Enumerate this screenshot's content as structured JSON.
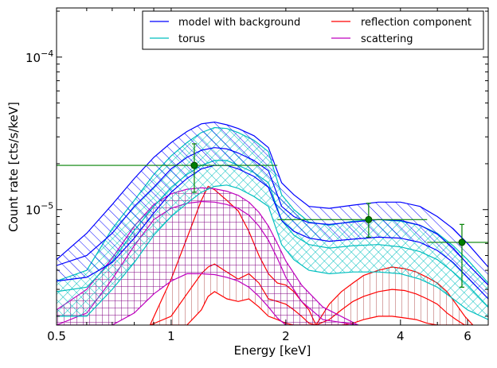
{
  "chart_data": {
    "type": "line",
    "title": "",
    "xlabel": "Energy [keV]",
    "ylabel": "Count rate [cts/s/keV]",
    "x_scale": "log",
    "y_scale": "log",
    "xlim": [
      0.5,
      6.8
    ],
    "ylim": [
      1.75e-06,
      0.00021
    ],
    "x_ticks": [
      {
        "value": 0.5,
        "label": "0.5"
      },
      {
        "value": 1,
        "label": "1"
      },
      {
        "value": 2,
        "label": "2"
      },
      {
        "value": 4,
        "label": "4"
      },
      {
        "value": 6,
        "label": "6"
      }
    ],
    "y_ticks": [
      {
        "value": 1e-05,
        "base": "10",
        "exp": "-5"
      },
      {
        "value": 0.0001,
        "base": "10",
        "exp": "-4"
      }
    ],
    "legend": {
      "placement": "top-right",
      "entries": [
        {
          "label": "model with background",
          "color": "#0000ff"
        },
        {
          "label": "reflection component",
          "color": "#ff0000"
        },
        {
          "label": "torus",
          "color": "#00bfbf"
        },
        {
          "label": "scattering",
          "color": "#bf00bf"
        }
      ]
    },
    "series": [
      {
        "name": "model with background",
        "color": "#0000ff",
        "hatch": "diagonal",
        "x": [
          0.5,
          0.6,
          0.7,
          0.8,
          0.9,
          1.0,
          1.1,
          1.2,
          1.3,
          1.4,
          1.5,
          1.65,
          1.8,
          1.95,
          2.1,
          2.3,
          2.6,
          3.0,
          3.5,
          4.0,
          4.5,
          5.0,
          5.5,
          6.0,
          6.8
        ],
        "upper": [
          4.7e-06,
          7e-06,
          1.08e-05,
          1.6e-05,
          2.2e-05,
          2.75e-05,
          3.25e-05,
          3.65e-05,
          3.75e-05,
          3.6e-05,
          3.4e-05,
          3.05e-05,
          2.55e-05,
          1.5e-05,
          1.25e-05,
          1.05e-05,
          1.02e-05,
          1.07e-05,
          1.12e-05,
          1.12e-05,
          1.05e-05,
          9e-06,
          7.5e-06,
          6e-06,
          4.2e-06
        ],
        "median": [
          4.3e-06,
          5e-06,
          7e-06,
          1.05e-05,
          1.4e-05,
          1.85e-05,
          2.2e-05,
          2.45e-05,
          2.55e-05,
          2.5e-05,
          2.35e-05,
          2.1e-05,
          1.8e-05,
          1.05e-05,
          9e-06,
          8.2e-06,
          8e-06,
          8.3e-06,
          8.6e-06,
          8.5e-06,
          7.9e-06,
          6.9e-06,
          5.6e-06,
          4.4e-06,
          3.2e-06
        ],
        "lower": [
          3.4e-06,
          3.6e-06,
          4.5e-06,
          6.5e-06,
          9.5e-06,
          1.3e-05,
          1.6e-05,
          1.85e-05,
          1.95e-05,
          1.95e-05,
          1.85e-05,
          1.65e-05,
          1.4e-05,
          8.5e-06,
          7.2e-06,
          6.5e-06,
          6.2e-06,
          6.4e-06,
          6.6e-06,
          6.5e-06,
          6.1e-06,
          5.4e-06,
          4.5e-06,
          3.6e-06,
          2.6e-06
        ]
      },
      {
        "name": "torus",
        "color": "#00bfbf",
        "hatch": "cross",
        "x": [
          0.5,
          0.6,
          0.7,
          0.8,
          0.9,
          1.0,
          1.1,
          1.2,
          1.3,
          1.4,
          1.5,
          1.65,
          1.8,
          1.95,
          2.1,
          2.3,
          2.6,
          3.0,
          3.5,
          4.0,
          4.5,
          5.0,
          5.5,
          6.0,
          6.8
        ],
        "upper": [
          3.4e-06,
          4e-06,
          7.5e-06,
          1.15e-05,
          1.7e-05,
          2.25e-05,
          2.75e-05,
          3.2e-05,
          3.45e-05,
          3.4e-05,
          3.2e-05,
          2.85e-05,
          2.4e-05,
          1.25e-05,
          1e-05,
          8.3e-06,
          7.9e-06,
          8.4e-06,
          8.6e-06,
          8.4e-06,
          7.9e-06,
          7e-06,
          5.8e-06,
          4.7e-06,
          3.3e-06
        ],
        "median": [
          2.9e-06,
          3.1e-06,
          4.6e-06,
          7.3e-06,
          1.05e-05,
          1.4e-05,
          1.7e-05,
          1.95e-05,
          2.1e-05,
          2.1e-05,
          1.95e-05,
          1.75e-05,
          1.5e-05,
          8.5e-06,
          6.8e-06,
          5.9e-06,
          5.6e-06,
          5.8e-06,
          5.9e-06,
          5.7e-06,
          5.3e-06,
          4.7e-06,
          3.9e-06,
          3.2e-06,
          2.3e-06
        ],
        "lower": [
          2e-06,
          2e-06,
          3e-06,
          4.5e-06,
          6.8e-06,
          9e-06,
          1.1e-05,
          1.3e-05,
          1.42e-05,
          1.45e-05,
          1.38e-05,
          1.22e-05,
          1.05e-05,
          5.9e-06,
          4.7e-06,
          4e-06,
          3.8e-06,
          3.9e-06,
          3.9e-06,
          3.8e-06,
          3.5e-06,
          3.1e-06,
          2.6e-06,
          2.2e-06,
          1.9e-06
        ]
      },
      {
        "name": "scattering",
        "color": "#bf00bf",
        "hatch": "grid",
        "x": [
          0.5,
          0.6,
          0.7,
          0.8,
          0.9,
          1.0,
          1.1,
          1.2,
          1.3,
          1.4,
          1.5,
          1.6,
          1.7,
          1.8,
          1.9,
          2.0,
          2.2,
          2.5,
          3.1
        ],
        "upper": [
          2.2e-06,
          3e-06,
          4.8e-06,
          7.8e-06,
          1.08e-05,
          1.27e-05,
          1.36e-05,
          1.39e-05,
          1.37e-05,
          1.32e-05,
          1.24e-05,
          1.12e-05,
          9.6e-06,
          7.8e-06,
          6e-06,
          4.6e-06,
          3.2e-06,
          2.3e-06,
          1.75e-06
        ],
        "median": [
          1.75e-06,
          2.1e-06,
          3.5e-06,
          5.8e-06,
          8.6e-06,
          1.02e-05,
          1.1e-05,
          1.13e-05,
          1.12e-05,
          1.08e-05,
          1.02e-05,
          9.2e-06,
          7.8e-06,
          6.3e-06,
          4.8e-06,
          3.6e-06,
          2.5e-06,
          1.9e-06,
          1.75e-06
        ],
        "lower": [
          1.75e-06,
          1.75e-06,
          1.75e-06,
          2.1e-06,
          2.8e-06,
          3.4e-06,
          3.8e-06,
          3.8e-06,
          3.75e-06,
          3.6e-06,
          3.4e-06,
          3.1e-06,
          2.7e-06,
          2.3e-06,
          1.95e-06,
          1.75e-06,
          1.75e-06,
          1.75e-06,
          1.75e-06
        ]
      },
      {
        "name": "reflection component",
        "color": "#ff0000",
        "hatch": "vertical",
        "segments": [
          {
            "x": [
              0.88,
              1.0,
              1.1,
              1.2,
              1.25,
              1.3,
              1.4,
              1.5,
              1.6,
              1.7,
              1.8,
              1.9,
              2.0,
              2.1,
              2.2,
              2.3,
              2.4
            ],
            "upper": [
              1.75e-06,
              3.5e-06,
              6.5e-06,
              1.15e-05,
              1.42e-05,
              1.35e-05,
              1.15e-05,
              9.8e-06,
              7.2e-06,
              5e-06,
              3.8e-06,
              3.3e-06,
              3.2e-06,
              2.9e-06,
              2.5e-06,
              2.2e-06,
              1.75e-06
            ],
            "median": [
              1.75e-06,
              2e-06,
              2.8e-06,
              3.8e-06,
              4.2e-06,
              4.4e-06,
              3.9e-06,
              3.5e-06,
              3.8e-06,
              3.3e-06,
              2.6e-06,
              2.5e-06,
              2.4e-06,
              2.2e-06,
              2e-06,
              1.8e-06,
              1.75e-06
            ],
            "lower": [
              1.75e-06,
              1.75e-06,
              1.75e-06,
              2.2e-06,
              2.7e-06,
              2.9e-06,
              2.6e-06,
              2.5e-06,
              2.6e-06,
              2.3e-06,
              2e-06,
              1.9e-06,
              1.8e-06,
              1.75e-06,
              1.75e-06,
              1.75e-06,
              1.75e-06
            ]
          },
          {
            "x": [
              2.4,
              2.6,
              2.8,
              3.0,
              3.2,
              3.5,
              3.8,
              4.1,
              4.4,
              4.7,
              5.0,
              5.3,
              5.6,
              5.9,
              6.2
            ],
            "upper": [
              1.75e-06,
              2.4e-06,
              2.9e-06,
              3.3e-06,
              3.7e-06,
              4e-06,
              4.2e-06,
              4.1e-06,
              3.9e-06,
              3.6e-06,
              3.3e-06,
              2.9e-06,
              2.4e-06,
              2e-06,
              1.75e-06
            ],
            "median": [
              1.75e-06,
              1.9e-06,
              2.2e-06,
              2.5e-06,
              2.7e-06,
              2.9e-06,
              3e-06,
              2.95e-06,
              2.8e-06,
              2.6e-06,
              2.4e-06,
              2.1e-06,
              1.9e-06,
              1.75e-06,
              1.75e-06
            ],
            "lower": [
              1.75e-06,
              1.75e-06,
              1.75e-06,
              1.8e-06,
              1.9e-06,
              2e-06,
              2e-06,
              1.95e-06,
              1.9e-06,
              1.8e-06,
              1.75e-06,
              1.75e-06,
              1.75e-06,
              1.75e-06,
              1.75e-06
            ]
          }
        ]
      }
    ],
    "data_points": {
      "color": "#008000",
      "points": [
        {
          "x": 1.15,
          "y": 1.95e-05,
          "xerr": [
            0.5,
            1.9
          ],
          "yerr": [
            1.3e-05,
            2.7e-05
          ]
        },
        {
          "x": 3.3,
          "y": 8.6e-06,
          "xerr": [
            1.9,
            4.7
          ],
          "yerr": [
            6.6e-06,
            1.1e-05
          ]
        },
        {
          "x": 5.8,
          "y": 6.1e-06,
          "xerr": [
            4.7,
            6.8
          ],
          "yerr": [
            3.1e-06,
            8e-06
          ]
        }
      ]
    }
  }
}
